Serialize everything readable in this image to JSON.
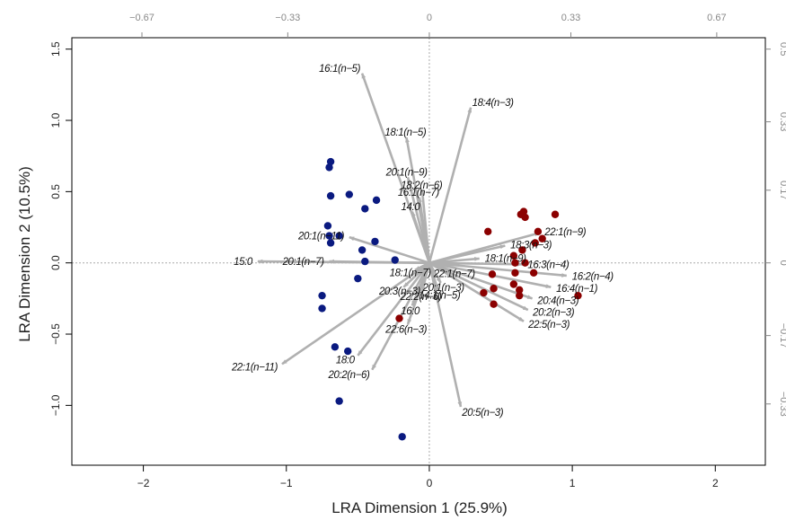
{
  "chart_data": {
    "type": "scatter",
    "title": "",
    "xlabel": "LRA Dimension 1 (25.9%)",
    "ylabel": "LRA Dimension 2 (10.5%)",
    "xlim": [
      -2.5,
      2.35
    ],
    "ylim": [
      -1.42,
      1.58
    ],
    "x_ticks": [
      -2,
      -1,
      0,
      1,
      2
    ],
    "y_ticks": [
      -1.0,
      -0.5,
      0.0,
      0.5,
      1.0,
      1.5
    ],
    "x_tick_labels": [
      "−2",
      "−1",
      "0",
      "1",
      "2"
    ],
    "y_tick_labels": [
      "−1.0",
      "−0.5",
      "0.0",
      "0.5",
      "1.0",
      "1.5"
    ],
    "top_axis": {
      "ticks": [
        -0.67,
        -0.33,
        0,
        0.33,
        0.67
      ],
      "labels": [
        "−0.67",
        "−0.33",
        "0",
        "0.33",
        "0.67"
      ]
    },
    "right_axis": {
      "ticks": [
        -0.33,
        -0.17,
        0,
        0.17,
        0.33,
        0.5
      ],
      "labels": [
        "−0.33",
        "−0.17",
        "0",
        "0.17",
        "0.33",
        "0.5"
      ]
    },
    "grid": false,
    "reference_lines": {
      "x": 0,
      "y": 0
    },
    "colors": {
      "arrow": "#b0b0b0",
      "group_blue": "#0a1a80",
      "group_red": "#8b0000",
      "frame": "#000000",
      "secondary_axis": "#888888"
    },
    "series": [
      {
        "color": "#0a1a80",
        "points": [
          [
            -0.69,
            0.71
          ],
          [
            -0.7,
            0.67
          ],
          [
            -0.56,
            0.48
          ],
          [
            -0.69,
            0.47
          ],
          [
            -0.37,
            0.44
          ],
          [
            -0.45,
            0.38
          ],
          [
            -0.71,
            0.26
          ],
          [
            -0.63,
            0.19
          ],
          [
            -0.7,
            0.19
          ],
          [
            -0.69,
            0.14
          ],
          [
            -0.38,
            0.15
          ],
          [
            -0.47,
            0.09
          ],
          [
            -0.45,
            0.01
          ],
          [
            -0.24,
            0.02
          ],
          [
            -0.5,
            -0.11
          ],
          [
            -0.75,
            -0.23
          ],
          [
            -0.75,
            -0.32
          ],
          [
            -0.66,
            -0.59
          ],
          [
            -0.57,
            -0.62
          ],
          [
            -0.63,
            -0.97
          ],
          [
            -0.19,
            -1.22
          ]
        ]
      },
      {
        "color": "#8b0000",
        "points": [
          [
            0.66,
            0.36
          ],
          [
            0.64,
            0.34
          ],
          [
            0.67,
            0.32
          ],
          [
            0.88,
            0.34
          ],
          [
            0.41,
            0.22
          ],
          [
            0.76,
            0.22
          ],
          [
            0.79,
            0.17
          ],
          [
            0.74,
            0.14
          ],
          [
            0.65,
            0.09
          ],
          [
            0.59,
            0.05
          ],
          [
            0.67,
            0.0
          ],
          [
            0.6,
            0.0
          ],
          [
            0.44,
            -0.08
          ],
          [
            0.6,
            -0.07
          ],
          [
            0.73,
            -0.07
          ],
          [
            0.59,
            -0.15
          ],
          [
            0.63,
            -0.19
          ],
          [
            0.45,
            -0.18
          ],
          [
            0.38,
            -0.21
          ],
          [
            0.63,
            -0.23
          ],
          [
            1.04,
            -0.23
          ],
          [
            0.45,
            -0.29
          ],
          [
            -0.21,
            -0.39
          ]
        ]
      }
    ],
    "arrows": [
      {
        "label": "16:1(n−5)",
        "x": -0.47,
        "y": 1.33
      },
      {
        "label": "18:4(n−3)",
        "x": 0.29,
        "y": 1.09
      },
      {
        "label": "18:1(n−5)",
        "x": -0.16,
        "y": 0.88
      },
      {
        "label": "20:1(n−9)",
        "x": -0.15,
        "y": 0.6
      },
      {
        "label": "18:2(n−6)",
        "x": -0.05,
        "y": 0.51
      },
      {
        "label": "16:1(n−7)",
        "x": -0.07,
        "y": 0.46
      },
      {
        "label": "14:0",
        "x": -0.12,
        "y": 0.36
      },
      {
        "label": "22:1(n−9)",
        "x": 0.77,
        "y": 0.21
      },
      {
        "label": "20:1(n−11)",
        "x": -0.56,
        "y": 0.18
      },
      {
        "label": "18:3(n−3)",
        "x": 0.53,
        "y": 0.12
      },
      {
        "label": "15:0",
        "x": -1.2,
        "y": 0.01
      },
      {
        "label": "20:1(n−7)",
        "x": -0.7,
        "y": 0.01
      },
      {
        "label": "18:1(n−9)",
        "x": 0.35,
        "y": 0.03
      },
      {
        "label": "16:3(n−4)",
        "x": 0.65,
        "y": -0.01
      },
      {
        "label": "16:2(n−4)",
        "x": 0.96,
        "y": -0.09
      },
      {
        "label": "18:1(n−7)",
        "x": -0.1,
        "y": -0.05
      },
      {
        "label": "22:1(n−7)",
        "x": 0.14,
        "y": -0.06
      },
      {
        "label": "16:4(n−1)",
        "x": 0.85,
        "y": -0.17
      },
      {
        "label": "20:3(n−3)",
        "x": -0.18,
        "y": -0.17
      },
      {
        "label": "20:1(n−3)",
        "x": 0.08,
        "y": -0.14
      },
      {
        "label": "14:1(n−5)",
        "x": 0.06,
        "y": -0.19
      },
      {
        "label": "22:2(n−6)",
        "x": -0.05,
        "y": -0.2
      },
      {
        "label": "20:4(n−3)",
        "x": 0.72,
        "y": -0.25
      },
      {
        "label": "20:2(n−3)",
        "x": 0.69,
        "y": -0.33
      },
      {
        "label": "16:0",
        "x": -0.12,
        "y": -0.3
      },
      {
        "label": "22:5(n−3)",
        "x": 0.66,
        "y": -0.41
      },
      {
        "label": "22:6(n−3)",
        "x": -0.15,
        "y": -0.43
      },
      {
        "label": "22:1(n−11)",
        "x": -1.03,
        "y": -0.71
      },
      {
        "label": "18:0",
        "x": -0.5,
        "y": -0.65
      },
      {
        "label": "20:2(n−6)",
        "x": -0.4,
        "y": -0.75
      },
      {
        "label": "20:5(n−3)",
        "x": 0.22,
        "y": -1.01
      }
    ]
  }
}
